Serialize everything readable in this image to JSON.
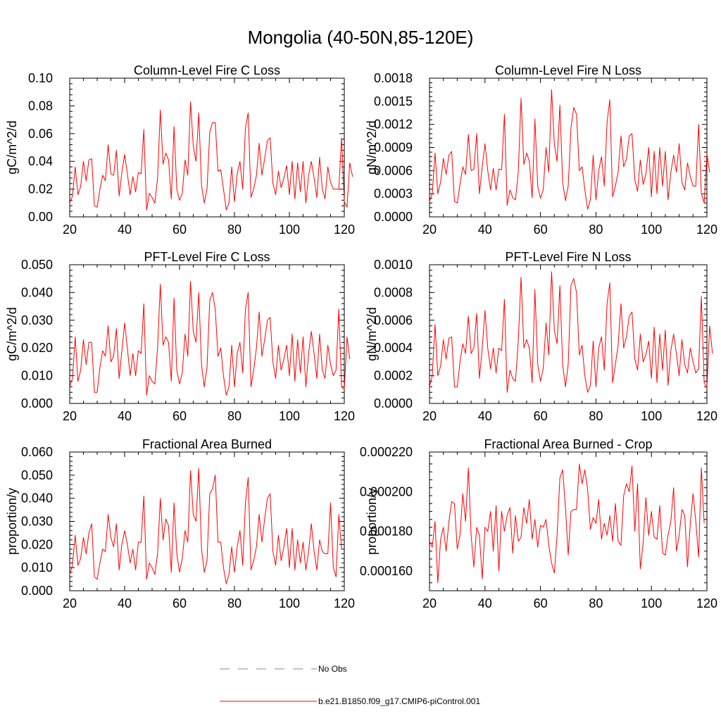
{
  "figure": {
    "title": "Mongolia (40-50N,85-120E)",
    "line_color": "#ff0000",
    "obs_color": "#8080c0"
  },
  "legend": [
    {
      "style": "dashed",
      "color": "#8080c0",
      "label": "No Obs"
    },
    {
      "style": "solid",
      "color": "#ff0000",
      "label": "b.e21.B1850.f09_g17.CMIP6-piControl.001"
    }
  ],
  "chart_data": [
    {
      "id": "col-fire-c",
      "type": "line",
      "title": "Column-Level Fire C Loss",
      "ylabel": "gC/m^2/d",
      "xlim": [
        20,
        120
      ],
      "xticks": [
        20,
        40,
        60,
        80,
        100,
        120
      ],
      "xtick_labels": [
        "20",
        "40",
        "60",
        "80",
        "100",
        "120"
      ],
      "ylim": [
        0,
        0.1
      ],
      "yticks": [
        0,
        0.02,
        0.04,
        0.06,
        0.08,
        0.1
      ],
      "ytick_labels": [
        "0.00",
        "0.02",
        "0.04",
        "0.06",
        "0.08",
        "0.10"
      ],
      "x_start": 20,
      "series": [
        {
          "name": "b.e21.B1850.f09_g17.CMIP6-piControl.001",
          "values": [
            0.01,
            0.015,
            0.036,
            0.016,
            0.022,
            0.04,
            0.026,
            0.041,
            0.042,
            0.008,
            0.007,
            0.02,
            0.03,
            0.026,
            0.052,
            0.031,
            0.03,
            0.048,
            0.015,
            0.032,
            0.045,
            0.031,
            0.016,
            0.029,
            0.018,
            0.032,
            0.031,
            0.063,
            0.005,
            0.017,
            0.014,
            0.01,
            0.028,
            0.077,
            0.038,
            0.046,
            0.041,
            0.013,
            0.065,
            0.02,
            0.012,
            0.017,
            0.041,
            0.03,
            0.083,
            0.051,
            0.04,
            0.075,
            0.023,
            0.01,
            0.02,
            0.061,
            0.068,
            0.068,
            0.033,
            0.034,
            0.02,
            0.005,
            0.01,
            0.036,
            0.011,
            0.031,
            0.04,
            0.02,
            0.064,
            0.075,
            0.014,
            0.02,
            0.03,
            0.053,
            0.03,
            0.042,
            0.055,
            0.057,
            0.024,
            0.016,
            0.033,
            0.021,
            0.028,
            0.037,
            0.016,
            0.04,
            0.013,
            0.039,
            0.018,
            0.04,
            0.01,
            0.03,
            0.04,
            0.028,
            0.014,
            0.043,
            0.02,
            0.013,
            0.036,
            0.025,
            0.02,
            0.02,
            0.02,
            0.057,
            0.011,
            0.007,
            0.039,
            0.029
          ]
        }
      ]
    },
    {
      "id": "col-fire-n",
      "type": "line",
      "title": "Column-Level Fire N Loss",
      "ylabel": "gN/m^2/d",
      "xlim": [
        20,
        120
      ],
      "xticks": [
        20,
        40,
        60,
        80,
        100,
        120
      ],
      "xtick_labels": [
        "20",
        "40",
        "60",
        "80",
        "100",
        "120"
      ],
      "ylim": [
        0,
        0.0018
      ],
      "yticks": [
        0,
        0.0003,
        0.0006,
        0.0009,
        0.0012,
        0.0015,
        0.0018
      ],
      "ytick_labels": [
        "0.0000",
        "0.0003",
        "0.0006",
        "0.0009",
        "0.0012",
        "0.0015",
        "0.0018"
      ],
      "x_start": 20,
      "series": [
        {
          "name": "b.e21.B1850.f09_g17.CMIP6-piControl.001",
          "values": [
            0.0002,
            0.0003,
            0.00083,
            0.0003,
            0.00045,
            0.00076,
            0.00055,
            0.0008,
            0.00085,
            0.0002,
            0.00018,
            0.00042,
            0.00065,
            0.00055,
            0.00107,
            0.0006,
            0.00062,
            0.00108,
            0.0003,
            0.00065,
            0.00095,
            0.0006,
            0.00035,
            0.00063,
            0.00035,
            0.00062,
            0.00061,
            0.00133,
            0.00015,
            0.00035,
            0.00025,
            0.00022,
            0.00058,
            0.00154,
            0.00068,
            0.00083,
            0.00072,
            0.00025,
            0.00127,
            0.0004,
            0.00024,
            0.00035,
            0.0009,
            0.00058,
            0.00165,
            0.00095,
            0.00072,
            0.00145,
            0.00045,
            0.00021,
            0.0004,
            0.00115,
            0.00142,
            0.00133,
            0.0006,
            0.00065,
            0.00035,
            0.0001,
            0.00022,
            0.0008,
            0.00022,
            0.0006,
            0.00078,
            0.0004,
            0.00123,
            0.00152,
            0.00026,
            0.0004,
            0.00058,
            0.00105,
            0.00065,
            0.00075,
            0.00105,
            0.00108,
            0.00048,
            0.00033,
            0.00074,
            0.00042,
            0.00055,
            0.0009,
            0.00026,
            0.00085,
            0.0003,
            0.0009,
            0.0004,
            0.00085,
            0.00022,
            0.00058,
            0.0008,
            0.00058,
            0.00095,
            0.00045,
            0.00035,
            0.0007,
            0.00052,
            0.0004,
            0.0004,
            0.0012,
            0.0003,
            0.00018,
            0.00082,
            0.00058
          ]
        }
      ]
    },
    {
      "id": "pft-fire-c",
      "type": "line",
      "title": "PFT-Level Fire C Loss",
      "ylabel": "gC/m^2/d",
      "xlim": [
        20,
        120
      ],
      "xticks": [
        20,
        40,
        60,
        80,
        100,
        120
      ],
      "xtick_labels": [
        "20",
        "40",
        "60",
        "80",
        "100",
        "120"
      ],
      "ylim": [
        0,
        0.05
      ],
      "yticks": [
        0,
        0.01,
        0.02,
        0.03,
        0.04,
        0.05
      ],
      "ytick_labels": [
        "0.000",
        "0.010",
        "0.020",
        "0.030",
        "0.040",
        "0.050"
      ],
      "x_start": 20,
      "series": [
        {
          "name": "b.e21.B1850.f09_g17.CMIP6-piControl.001",
          "values": [
            0.006,
            0.009,
            0.024,
            0.008,
            0.012,
            0.023,
            0.014,
            0.022,
            0.022,
            0.004,
            0.004,
            0.013,
            0.019,
            0.017,
            0.028,
            0.015,
            0.017,
            0.027,
            0.009,
            0.019,
            0.029,
            0.02,
            0.01,
            0.018,
            0.01,
            0.019,
            0.018,
            0.036,
            0.003,
            0.01,
            0.008,
            0.007,
            0.02,
            0.043,
            0.021,
            0.024,
            0.022,
            0.008,
            0.038,
            0.012,
            0.007,
            0.011,
            0.025,
            0.017,
            0.044,
            0.026,
            0.022,
            0.04,
            0.014,
            0.006,
            0.013,
            0.037,
            0.04,
            0.034,
            0.017,
            0.02,
            0.01,
            0.003,
            0.006,
            0.021,
            0.006,
            0.018,
            0.022,
            0.011,
            0.034,
            0.04,
            0.006,
            0.012,
            0.02,
            0.033,
            0.017,
            0.023,
            0.03,
            0.031,
            0.015,
            0.009,
            0.021,
            0.012,
            0.016,
            0.021,
            0.01,
            0.025,
            0.008,
            0.023,
            0.011,
            0.024,
            0.006,
            0.018,
            0.026,
            0.018,
            0.009,
            0.025,
            0.012,
            0.009,
            0.021,
            0.014,
            0.01,
            0.012,
            0.034,
            0.006,
            0.005,
            0.024,
            0.016
          ]
        }
      ]
    },
    {
      "id": "pft-fire-n",
      "type": "line",
      "title": "PFT-Level Fire N Loss",
      "ylabel": "gN/m^2/d",
      "xlim": [
        20,
        120
      ],
      "xticks": [
        20,
        40,
        60,
        80,
        100,
        120
      ],
      "xtick_labels": [
        "20",
        "40",
        "60",
        "80",
        "100",
        "120"
      ],
      "ylim": [
        0,
        0.001
      ],
      "yticks": [
        0,
        0.0002,
        0.0004,
        0.0006,
        0.0008,
        0.001
      ],
      "ytick_labels": [
        "0.0000",
        "0.0002",
        "0.0004",
        "0.0006",
        "0.0008",
        "0.0010"
      ],
      "x_start": 20,
      "series": [
        {
          "name": "b.e21.B1850.f09_g17.CMIP6-piControl.001",
          "values": [
            0.00012,
            0.0002,
            0.00057,
            0.0002,
            0.00027,
            0.00046,
            0.00032,
            0.00047,
            0.00048,
            0.00012,
            0.00012,
            0.0003,
            0.00043,
            0.00036,
            0.00063,
            0.00036,
            0.0004,
            0.00065,
            0.00018,
            0.0004,
            0.00067,
            0.0004,
            0.00025,
            0.0004,
            0.00022,
            0.0004,
            0.00038,
            0.00075,
            8e-05,
            0.00024,
            0.00018,
            0.00016,
            0.00045,
            0.00091,
            0.0004,
            0.00046,
            0.0004,
            0.00015,
            0.00082,
            0.00028,
            0.00016,
            0.00025,
            0.00058,
            0.00035,
            0.00095,
            0.00053,
            0.00043,
            0.00085,
            0.00028,
            0.00012,
            0.00028,
            0.00085,
            0.0009,
            0.0008,
            0.00035,
            0.00042,
            0.0002,
            8e-05,
            0.00013,
            0.00045,
            0.00012,
            0.0004,
            0.00048,
            0.00024,
            0.00072,
            0.00087,
            0.00015,
            0.00028,
            0.00042,
            0.00072,
            0.0004,
            0.00048,
            0.00063,
            0.00066,
            0.00032,
            0.00024,
            0.0005,
            0.0003,
            0.00035,
            0.00045,
            0.00018,
            0.00055,
            0.00015,
            0.0005,
            0.00024,
            0.00053,
            0.00013,
            0.00038,
            0.0005,
            0.00036,
            0.0002,
            0.00046,
            0.00028,
            0.00022,
            0.0004,
            0.0003,
            0.00022,
            0.00025,
            0.00077,
            0.00015,
            0.00011,
            0.00056,
            0.00036
          ]
        }
      ]
    },
    {
      "id": "frac-burned",
      "type": "line",
      "title": "Fractional Area Burned",
      "ylabel": "proportion/y",
      "xlim": [
        20,
        120
      ],
      "xticks": [
        20,
        40,
        60,
        80,
        100,
        120
      ],
      "xtick_labels": [
        "20",
        "40",
        "60",
        "80",
        "100",
        "120"
      ],
      "ylim": [
        0,
        0.06
      ],
      "yticks": [
        0,
        0.01,
        0.02,
        0.03,
        0.04,
        0.05,
        0.06
      ],
      "ytick_labels": [
        "0.000",
        "0.010",
        "0.020",
        "0.030",
        "0.040",
        "0.050",
        "0.060"
      ],
      "x_start": 20,
      "series": [
        {
          "name": "b.e21.B1850.f09_g17.CMIP6-piControl.001",
          "values": [
            0.007,
            0.011,
            0.024,
            0.011,
            0.014,
            0.023,
            0.016,
            0.025,
            0.029,
            0.006,
            0.005,
            0.012,
            0.018,
            0.017,
            0.033,
            0.023,
            0.019,
            0.029,
            0.009,
            0.02,
            0.026,
            0.02,
            0.012,
            0.018,
            0.009,
            0.021,
            0.021,
            0.041,
            0.005,
            0.012,
            0.01,
            0.007,
            0.016,
            0.04,
            0.022,
            0.031,
            0.028,
            0.008,
            0.038,
            0.016,
            0.008,
            0.014,
            0.026,
            0.021,
            0.052,
            0.033,
            0.03,
            0.053,
            0.018,
            0.008,
            0.013,
            0.042,
            0.044,
            0.05,
            0.021,
            0.021,
            0.01,
            0.003,
            0.007,
            0.019,
            0.008,
            0.019,
            0.026,
            0.011,
            0.038,
            0.049,
            0.009,
            0.013,
            0.019,
            0.033,
            0.021,
            0.031,
            0.04,
            0.042,
            0.017,
            0.011,
            0.024,
            0.013,
            0.019,
            0.027,
            0.01,
            0.027,
            0.009,
            0.022,
            0.012,
            0.021,
            0.009,
            0.017,
            0.029,
            0.017,
            0.009,
            0.022,
            0.017,
            0.016,
            0.016,
            0.038,
            0.01,
            0.006,
            0.033,
            0.018
          ]
        }
      ]
    },
    {
      "id": "frac-burned-crop",
      "type": "line",
      "title": "Fractional Area Burned - Crop",
      "ylabel": "proportion/y",
      "xlim": [
        20,
        120
      ],
      "xticks": [
        20,
        40,
        60,
        80,
        100,
        120
      ],
      "xtick_labels": [
        "20",
        "40",
        "60",
        "80",
        "100",
        "120"
      ],
      "ylim": [
        0.00015,
        0.00022
      ],
      "yticks": [
        0.00016,
        0.00018,
        0.0002,
        0.00022
      ],
      "ytick_labels": [
        "0.000160",
        "0.000180",
        "0.000200",
        "0.000220"
      ],
      "x_start": 20,
      "series": [
        {
          "name": "b.e21.B1850.f09_g17.CMIP6-piControl.001",
          "values": [
            0.000175,
            0.000172,
            0.000185,
            0.000154,
            0.000176,
            0.000182,
            0.00017,
            0.000185,
            0.000195,
            0.000194,
            0.000171,
            0.000178,
            0.000199,
            0.000185,
            0.000212,
            0.000178,
            0.000162,
            0.000182,
            0.000178,
            0.000156,
            0.000182,
            0.00018,
            0.00019,
            0.00017,
            0.000193,
            0.00016,
            0.00019,
            0.00018,
            0.000188,
            0.000192,
            0.000169,
            0.000188,
            0.000175,
            0.000177,
            0.000192,
            0.000184,
            0.000196,
            0.000176,
            0.000186,
            0.000172,
            0.000183,
            0.000182,
            0.000186,
            0.000173,
            0.000164,
            0.000159,
            0.000178,
            0.000207,
            0.000211,
            0.000192,
            0.000168,
            0.00019,
            0.000191,
            0.000191,
            0.000214,
            0.000204,
            0.000211,
            0.000201,
            0.000181,
            0.000187,
            0.000184,
            0.000196,
            0.000176,
            0.000184,
            0.000178,
            0.000188,
            0.000175,
            0.000194,
            0.000175,
            0.000173,
            0.000198,
            0.000204,
            0.0002,
            0.000213,
            0.00018,
            0.000204,
            0.000161,
            0.000174,
            0.000197,
            0.000178,
            0.00019,
            0.000177,
            0.000176,
            0.000193,
            0.000169,
            0.000168,
            0.000178,
            0.000185,
            0.000202,
            0.00017,
            0.000178,
            0.000191,
            0.000188,
            0.000162,
            0.000184,
            0.000199,
            0.000185,
            0.000167,
            0.000212,
            0.000184
          ]
        }
      ]
    }
  ]
}
